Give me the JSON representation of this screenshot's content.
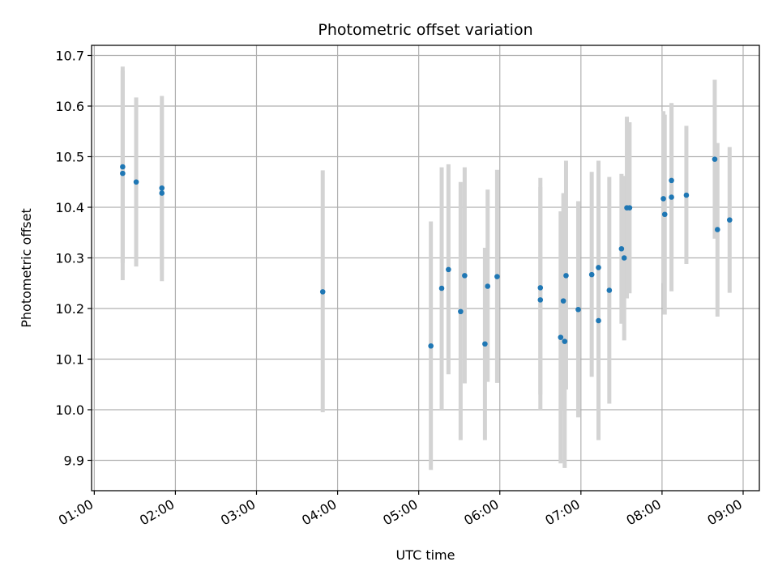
{
  "chart_data": {
    "type": "scatter",
    "title": "Photometric offset variation",
    "xlabel": "UTC time",
    "ylabel": "Photometric offset",
    "x_tick_labels": [
      "01:00",
      "02:00",
      "03:00",
      "04:00",
      "05:00",
      "06:00",
      "07:00",
      "08:00",
      "09:00"
    ],
    "x_ticks_hours": [
      1,
      2,
      3,
      4,
      5,
      6,
      7,
      8,
      9
    ],
    "y_tick_labels": [
      "9.9",
      "10.0",
      "10.1",
      "10.2",
      "10.3",
      "10.4",
      "10.5",
      "10.6",
      "10.7"
    ],
    "y_ticks": [
      9.9,
      10.0,
      10.1,
      10.2,
      10.3,
      10.4,
      10.5,
      10.6,
      10.7
    ],
    "xlim": [
      "00:58",
      "09:12"
    ],
    "ylim": [
      9.84,
      10.72
    ],
    "grid": true,
    "colors": {
      "points": "#1f77b4",
      "error_bars": "#d3d3d3",
      "grid": "#b0b0b0"
    },
    "points": [
      {
        "t": "01:21",
        "y": 10.48,
        "lo": 10.29,
        "hi": 10.67
      },
      {
        "t": "01:21",
        "y": 10.467,
        "lo": 10.256,
        "hi": 10.678
      },
      {
        "t": "01:31",
        "y": 10.45,
        "lo": 10.283,
        "hi": 10.617
      },
      {
        "t": "01:50",
        "y": 10.438,
        "lo": 10.276,
        "hi": 10.6
      },
      {
        "t": "01:50",
        "y": 10.428,
        "lo": 10.254,
        "hi": 10.62
      },
      {
        "t": "03:49",
        "y": 10.233,
        "lo": 9.995,
        "hi": 10.473
      },
      {
        "t": "05:09",
        "y": 10.126,
        "lo": 9.881,
        "hi": 10.372
      },
      {
        "t": "05:17",
        "y": 10.24,
        "lo": 10.0,
        "hi": 10.479
      },
      {
        "t": "05:22",
        "y": 10.277,
        "lo": 10.07,
        "hi": 10.485
      },
      {
        "t": "05:31",
        "y": 10.194,
        "lo": 9.94,
        "hi": 10.45
      },
      {
        "t": "05:34",
        "y": 10.265,
        "lo": 10.052,
        "hi": 10.479
      },
      {
        "t": "05:49",
        "y": 10.13,
        "lo": 9.94,
        "hi": 10.32
      },
      {
        "t": "05:51",
        "y": 10.244,
        "lo": 10.055,
        "hi": 10.435
      },
      {
        "t": "05:58",
        "y": 10.263,
        "lo": 10.053,
        "hi": 10.474
      },
      {
        "t": "06:30",
        "y": 10.241,
        "lo": 10.03,
        "hi": 10.458
      },
      {
        "t": "06:30",
        "y": 10.217,
        "lo": 10.0,
        "hi": 10.44
      },
      {
        "t": "06:45",
        "y": 10.143,
        "lo": 9.894,
        "hi": 10.392
      },
      {
        "t": "06:47",
        "y": 10.215,
        "lo": 10.0,
        "hi": 10.428
      },
      {
        "t": "06:48",
        "y": 10.135,
        "lo": 9.885,
        "hi": 10.385
      },
      {
        "t": "06:49",
        "y": 10.265,
        "lo": 10.04,
        "hi": 10.492
      },
      {
        "t": "06:58",
        "y": 10.198,
        "lo": 9.985,
        "hi": 10.412
      },
      {
        "t": "07:08",
        "y": 10.267,
        "lo": 10.065,
        "hi": 10.47
      },
      {
        "t": "07:13",
        "y": 10.281,
        "lo": 10.07,
        "hi": 10.492
      },
      {
        "t": "07:13",
        "y": 10.176,
        "lo": 9.94,
        "hi": 10.412
      },
      {
        "t": "07:21",
        "y": 10.236,
        "lo": 10.012,
        "hi": 10.46
      },
      {
        "t": "07:30",
        "y": 10.318,
        "lo": 10.17,
        "hi": 10.466
      },
      {
        "t": "07:32",
        "y": 10.3,
        "lo": 10.137,
        "hi": 10.462
      },
      {
        "t": "07:34",
        "y": 10.399,
        "lo": 10.22,
        "hi": 10.579
      },
      {
        "t": "07:36",
        "y": 10.399,
        "lo": 10.23,
        "hi": 10.568
      },
      {
        "t": "08:01",
        "y": 10.417,
        "lo": 10.25,
        "hi": 10.59
      },
      {
        "t": "08:02",
        "y": 10.386,
        "lo": 10.188,
        "hi": 10.583
      },
      {
        "t": "08:07",
        "y": 10.453,
        "lo": 10.3,
        "hi": 10.605
      },
      {
        "t": "08:07",
        "y": 10.42,
        "lo": 10.234,
        "hi": 10.606
      },
      {
        "t": "08:18",
        "y": 10.424,
        "lo": 10.288,
        "hi": 10.561
      },
      {
        "t": "08:39",
        "y": 10.495,
        "lo": 10.338,
        "hi": 10.652
      },
      {
        "t": "08:41",
        "y": 10.356,
        "lo": 10.184,
        "hi": 10.527
      },
      {
        "t": "08:50",
        "y": 10.375,
        "lo": 10.231,
        "hi": 10.519
      }
    ]
  }
}
